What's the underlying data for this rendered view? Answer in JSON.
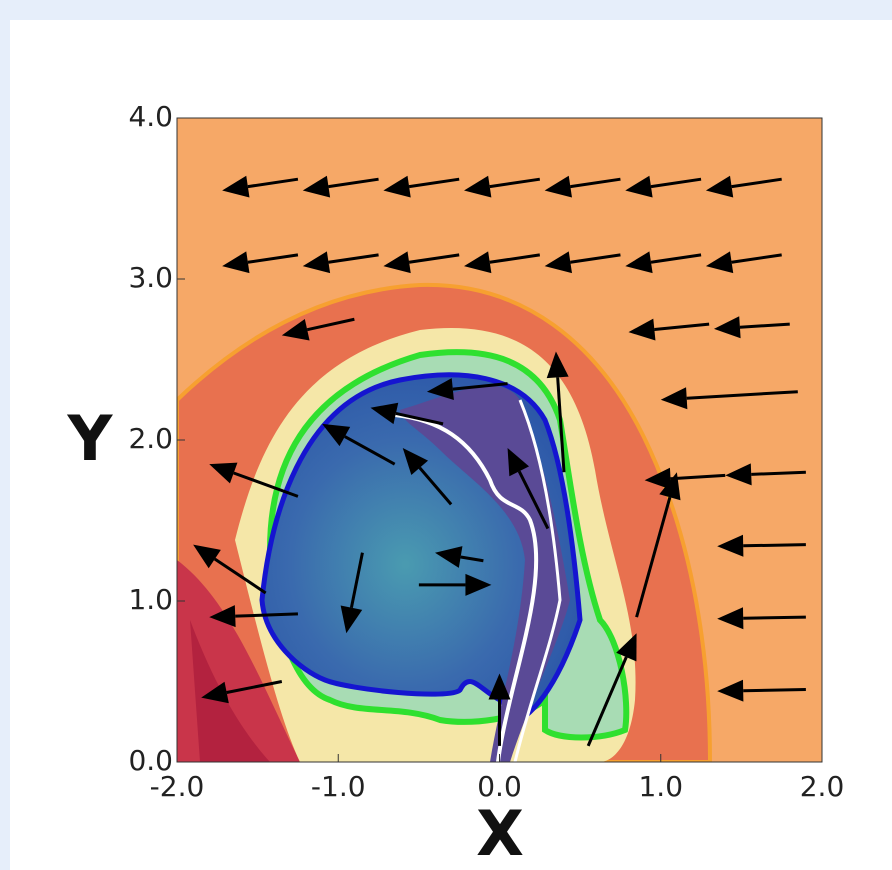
{
  "chart_data": {
    "type": "quiver",
    "xlabel": "X",
    "ylabel": "Y",
    "xlim": [
      -2,
      2
    ],
    "ylim": [
      0,
      4
    ],
    "xticks": [
      {
        "value": -2,
        "label": "-2.0"
      },
      {
        "value": -1,
        "label": "-1.0"
      },
      {
        "value": 0,
        "label": "0.0"
      },
      {
        "value": 1,
        "label": "1.0"
      },
      {
        "value": 2,
        "label": "2.0"
      }
    ],
    "yticks": [
      {
        "value": 0,
        "label": "0.0"
      },
      {
        "value": 1,
        "label": "1.0"
      },
      {
        "value": 2,
        "label": "2.0"
      },
      {
        "value": 3,
        "label": "3.0"
      },
      {
        "value": 4,
        "label": "4.0"
      }
    ],
    "color": "#000000",
    "x": [
      -1.25,
      -0.75,
      -0.25,
      0.25,
      0.75,
      1.25,
      1.75,
      -1.25,
      -0.75,
      -0.25,
      0.25,
      0.75,
      1.25,
      1.75,
      -0.9,
      1.3,
      1.8,
      1.85,
      1.4,
      1.9,
      1.9,
      1.9,
      1.9,
      0.05,
      -0.35,
      -0.65,
      -0.3,
      0.4,
      0.3,
      -0.5,
      -0.1,
      -0.85,
      -1.25,
      -1.45,
      -1.25,
      -1.35,
      0.55,
      0.85,
      0.0
    ],
    "y": [
      3.62,
      3.62,
      3.62,
      3.62,
      3.62,
      3.62,
      3.62,
      3.15,
      3.15,
      3.15,
      3.15,
      3.15,
      3.15,
      3.15,
      2.75,
      2.72,
      2.72,
      2.3,
      1.78,
      1.8,
      1.35,
      0.9,
      0.45,
      2.35,
      2.1,
      1.85,
      1.6,
      1.8,
      1.45,
      1.1,
      1.25,
      1.3,
      1.65,
      1.05,
      0.92,
      0.5,
      0.1,
      0.9,
      0.1
    ],
    "u": [
      -0.47,
      -0.47,
      -0.47,
      -0.47,
      -0.47,
      -0.47,
      -0.47,
      -0.47,
      -0.47,
      -0.47,
      -0.47,
      -0.47,
      -0.47,
      -0.47,
      -0.45,
      -0.5,
      -0.47,
      -0.85,
      -0.5,
      -0.5,
      -0.55,
      -0.55,
      -0.55,
      -0.5,
      -0.45,
      -0.45,
      -0.3,
      -0.05,
      -0.25,
      0.45,
      -0.3,
      -0.1,
      -0.55,
      -0.45,
      -0.55,
      -0.5,
      0.3,
      0.25,
      0.0
    ],
    "v": [
      -0.07,
      -0.07,
      -0.07,
      -0.07,
      -0.07,
      -0.07,
      -0.07,
      -0.07,
      -0.07,
      -0.07,
      -0.07,
      -0.07,
      -0.07,
      -0.07,
      -0.1,
      -0.05,
      -0.03,
      -0.05,
      -0.03,
      -0.02,
      -0.01,
      -0.01,
      -0.01,
      -0.05,
      0.1,
      0.25,
      0.35,
      0.75,
      0.5,
      0.0,
      0.05,
      -0.5,
      0.2,
      0.3,
      -0.02,
      -0.1,
      0.7,
      0.9,
      0.45
    ]
  }
}
